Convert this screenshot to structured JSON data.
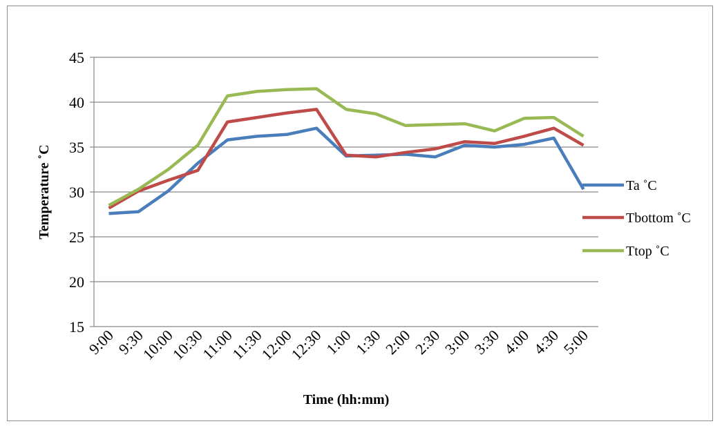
{
  "chart_data": {
    "type": "line",
    "title": "",
    "xlabel": "Time (hh:mm)",
    "ylabel": "Temperature ˚C",
    "ylim": [
      15,
      45
    ],
    "yticks": [
      15,
      20,
      25,
      30,
      35,
      40,
      45
    ],
    "grid": true,
    "legend_position": "right",
    "categories": [
      "9:00",
      "9:30",
      "10:00",
      "10:30",
      "11:00",
      "11:30",
      "12:00",
      "12:30",
      "1:00",
      "1:30",
      "2:00",
      "2:30",
      "3:00",
      "3:30",
      "4:00",
      "4:30",
      "5:00"
    ],
    "series": [
      {
        "name": "Ta ˚C",
        "color": "#4a7ebb",
        "values": [
          27.6,
          27.8,
          30.1,
          33.2,
          35.8,
          36.2,
          36.4,
          37.1,
          34.0,
          34.1,
          34.2,
          33.9,
          35.2,
          35.0,
          35.3,
          36.0,
          30.3
        ]
      },
      {
        "name": "Tbottom ˚C",
        "color": "#be4b48",
        "values": [
          28.2,
          30.1,
          31.3,
          32.4,
          37.8,
          38.3,
          38.8,
          39.2,
          34.1,
          33.9,
          34.4,
          34.8,
          35.6,
          35.4,
          36.2,
          37.1,
          35.2
        ]
      },
      {
        "name": "Ttop ˚C",
        "color": "#98b954",
        "values": [
          28.5,
          30.3,
          32.5,
          35.2,
          40.7,
          41.2,
          41.4,
          41.5,
          39.2,
          38.7,
          37.4,
          37.5,
          37.6,
          36.8,
          38.2,
          38.3,
          36.2
        ]
      }
    ]
  }
}
